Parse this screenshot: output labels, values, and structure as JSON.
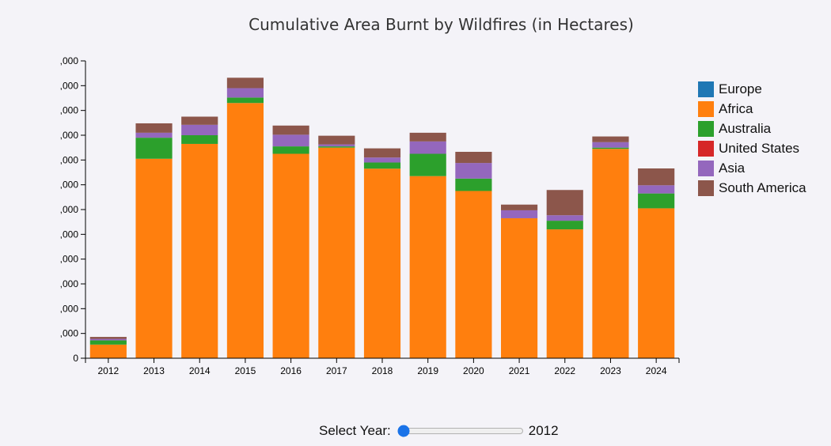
{
  "chart_data": {
    "type": "bar",
    "stacked": true,
    "title": "Cumulative Area Burnt by Wildfires (in Hectares)",
    "xlabel": "",
    "ylabel": "",
    "categories": [
      "2012",
      "2013",
      "2014",
      "2015",
      "2016",
      "2017",
      "2018",
      "2019",
      "2020",
      "2021",
      "2022",
      "2023",
      "2024"
    ],
    "y_tick_labels": [
      "0",
      ",000",
      ",000",
      ",000",
      ",000",
      ",000",
      ",000",
      ",000",
      ",000",
      ",000",
      ",000",
      ",000",
      ",000"
    ],
    "ylim": [
      0,
      12
    ],
    "grid": false,
    "legend_position": "right",
    "series": [
      {
        "name": "Europe",
        "color": "#1f77b4",
        "values": [
          0,
          0,
          0,
          0,
          0,
          0,
          0,
          0,
          0,
          0,
          0,
          0,
          0
        ]
      },
      {
        "name": "Africa",
        "color": "#ff7f0e",
        "values": [
          0.55,
          8.05,
          8.65,
          10.3,
          8.25,
          8.5,
          7.65,
          7.35,
          6.75,
          5.65,
          5.2,
          8.45,
          6.05
        ]
      },
      {
        "name": "Australia",
        "color": "#2ca02c",
        "values": [
          0.17,
          0.85,
          0.35,
          0.22,
          0.3,
          0.05,
          0.25,
          0.9,
          0.5,
          0,
          0.35,
          0.05,
          0.6
        ]
      },
      {
        "name": "United States",
        "color": "#d62728",
        "values": [
          0,
          0,
          0,
          0,
          0,
          0,
          0,
          0,
          0,
          0,
          0,
          0,
          0
        ]
      },
      {
        "name": "Asia",
        "color": "#9467bd",
        "values": [
          0.06,
          0.2,
          0.42,
          0.38,
          0.47,
          0.08,
          0.2,
          0.5,
          0.63,
          0.32,
          0.22,
          0.22,
          0.33
        ]
      },
      {
        "name": "South America",
        "color": "#8c564b",
        "values": [
          0.08,
          0.38,
          0.33,
          0.42,
          0.37,
          0.35,
          0.37,
          0.35,
          0.45,
          0.23,
          1.02,
          0.23,
          0.68
        ]
      }
    ]
  },
  "slider": {
    "label": "Select Year:",
    "value": "2012",
    "min": "2012",
    "max": "2024"
  }
}
